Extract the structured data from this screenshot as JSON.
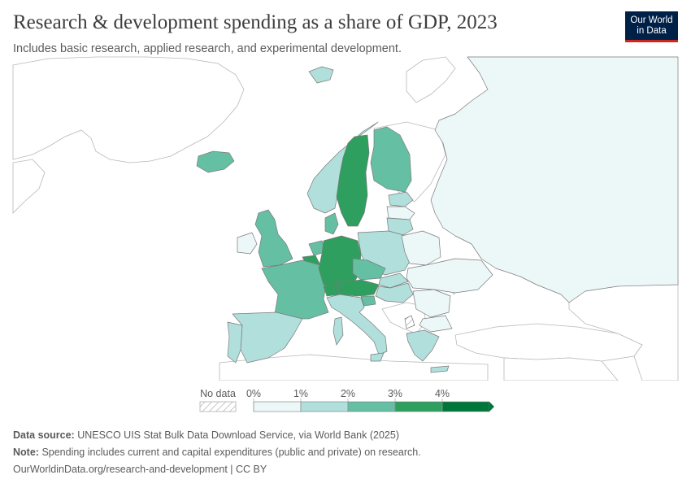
{
  "header": {
    "title": "Research & development spending as a share of GDP, 2023",
    "subtitle": "Includes basic research, applied research, and experimental development.",
    "logo_line1": "Our World",
    "logo_line2": "in Data"
  },
  "legend": {
    "no_data_label": "No data",
    "ticks": [
      "0%",
      "1%",
      "2%",
      "3%",
      "4%"
    ],
    "colors": [
      "#ecf7f8",
      "#b0dfdc",
      "#65bfa3",
      "#2e9f5e",
      "#00773a"
    ]
  },
  "map": {
    "land_outline": "#b8b8b8",
    "no_data_fill": "#ffffff",
    "regions": [
      {
        "name": "russia",
        "bin": 0
      },
      {
        "name": "belarus",
        "bin": 0
      },
      {
        "name": "ukraine",
        "bin": 0
      },
      {
        "name": "romania",
        "bin": 0
      },
      {
        "name": "bulgaria",
        "bin": 0
      },
      {
        "name": "ireland",
        "bin": 0
      },
      {
        "name": "latvia",
        "bin": 0
      },
      {
        "name": "norway",
        "bin": 1
      },
      {
        "name": "spain",
        "bin": 1
      },
      {
        "name": "italy",
        "bin": 1
      },
      {
        "name": "poland",
        "bin": 1
      },
      {
        "name": "estonia",
        "bin": 1
      },
      {
        "name": "lithuania",
        "bin": 1
      },
      {
        "name": "portugal",
        "bin": 1
      },
      {
        "name": "greece",
        "bin": 1
      },
      {
        "name": "slovakia",
        "bin": 1
      },
      {
        "name": "hungary",
        "bin": 1
      },
      {
        "name": "svalbard",
        "bin": 1
      },
      {
        "name": "iceland",
        "bin": 2
      },
      {
        "name": "finland",
        "bin": 2
      },
      {
        "name": "france",
        "bin": 2
      },
      {
        "name": "united-kingdom",
        "bin": 2
      },
      {
        "name": "denmark",
        "bin": 2
      },
      {
        "name": "netherlands",
        "bin": 2
      },
      {
        "name": "czechia",
        "bin": 2
      },
      {
        "name": "slovenia",
        "bin": 2
      },
      {
        "name": "sweden",
        "bin": 3
      },
      {
        "name": "germany",
        "bin": 3
      },
      {
        "name": "austria",
        "bin": 3
      },
      {
        "name": "switzerland",
        "bin": 3
      },
      {
        "name": "belgium",
        "bin": 3
      }
    ]
  },
  "footer": {
    "source_label": "Data source:",
    "source_text": "UNESCO UIS Stat Bulk Data Download Service, via World Bank (2025)",
    "note_label": "Note:",
    "note_text": "Spending includes current and capital expenditures (public and private) on research.",
    "url": "OurWorldinData.org/research-and-development | CC BY"
  }
}
